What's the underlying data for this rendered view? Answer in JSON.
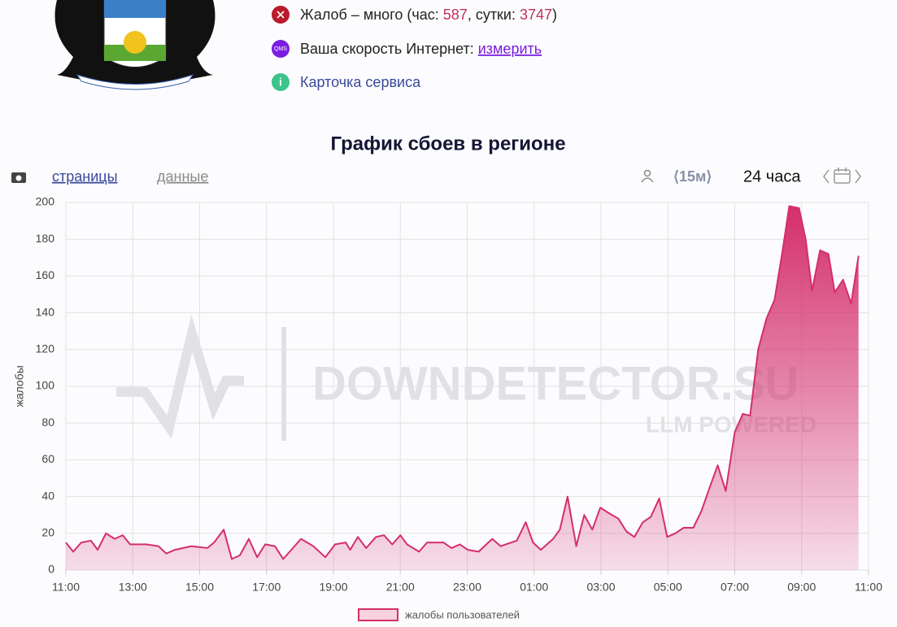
{
  "header": {
    "complaints": {
      "before": "Жалоб – много (час: ",
      "hour": 587,
      "middle": ", сутки: ",
      "day": 3747,
      "after": ")"
    },
    "speed": {
      "icon": "QMS",
      "label": "Ваша скорость Интернет: ",
      "link": "измерить"
    },
    "card": "Карточка сервиса"
  },
  "toolbar": {
    "pages": "страницы",
    "data": "данные",
    "interval": "⟨15м⟩",
    "period": "24 часа"
  },
  "watermark": {
    "brand": "DOWNDETECTOR.SU",
    "tagline": "LLM POWERED"
  },
  "chart_data": {
    "type": "area",
    "title": "График сбоев в регионе",
    "y_label": "жалобы",
    "xlim": [
      0,
      24
    ],
    "xticks": [
      {
        "value": 0,
        "label": "11:00"
      },
      {
        "value": 2,
        "label": "13:00"
      },
      {
        "value": 4,
        "label": "15:00"
      },
      {
        "value": 6,
        "label": "17:00"
      },
      {
        "value": 8,
        "label": "19:00"
      },
      {
        "value": 10,
        "label": "21:00"
      },
      {
        "value": 12,
        "label": "23:00"
      },
      {
        "value": 14,
        "label": "01:00"
      },
      {
        "value": 16,
        "label": "03:00"
      },
      {
        "value": 18,
        "label": "05:00"
      },
      {
        "value": 20,
        "label": "07:00"
      },
      {
        "value": 22,
        "label": "09:00"
      },
      {
        "value": 24,
        "label": "11:00"
      }
    ],
    "ylim": [
      0,
      200
    ],
    "yticks": [
      0,
      20,
      40,
      60,
      80,
      100,
      120,
      140,
      160,
      180,
      200
    ],
    "grid": true,
    "series": [
      {
        "name": "жалобы пользователей",
        "color": "#d42f6a",
        "x": [
          0,
          0.22,
          0.46,
          0.75,
          0.95,
          1.2,
          1.46,
          1.7,
          1.92,
          2.4,
          2.77,
          3.0,
          3.26,
          3.75,
          4.23,
          4.43,
          4.72,
          4.96,
          5.2,
          5.47,
          5.72,
          5.96,
          6.25,
          6.5,
          7.03,
          7.4,
          7.76,
          8.05,
          8.37,
          8.5,
          8.73,
          8.98,
          9.27,
          9.51,
          9.76,
          10.0,
          10.2,
          10.56,
          10.8,
          11.29,
          11.53,
          11.78,
          12.02,
          12.34,
          12.75,
          13.0,
          13.48,
          13.75,
          13.97,
          14.2,
          14.57,
          14.77,
          15.0,
          15.26,
          15.5,
          15.74,
          15.98,
          16.23,
          16.52,
          16.76,
          17.0,
          17.25,
          17.49,
          17.74,
          17.98,
          18.22,
          18.47,
          18.76,
          19.0,
          19.25,
          19.49,
          19.73,
          20.0,
          20.24,
          20.46,
          20.7,
          20.95,
          21.19,
          21.44,
          21.63,
          21.92,
          22.12,
          22.31,
          22.55,
          22.8,
          22.99,
          23.24,
          23.48,
          23.7
        ],
        "values": [
          15,
          10,
          15,
          16,
          11,
          20,
          17,
          19,
          14,
          14,
          13,
          9,
          11,
          13,
          12,
          15,
          22,
          6,
          8,
          17,
          7,
          14,
          13,
          6,
          17,
          13,
          7,
          14,
          15,
          11,
          18,
          12,
          18,
          19,
          14,
          19,
          14,
          10,
          15,
          15,
          12,
          14,
          11,
          10,
          17,
          13,
          16,
          26,
          15,
          11,
          17,
          22,
          40,
          13,
          30,
          22,
          34,
          31,
          28,
          21,
          18,
          26,
          29,
          39,
          18,
          20,
          23,
          23,
          32,
          45,
          57,
          43,
          75,
          85,
          84,
          120,
          137,
          147,
          175,
          198,
          197,
          180,
          152,
          174,
          172,
          151,
          158,
          145,
          171
        ]
      }
    ]
  }
}
